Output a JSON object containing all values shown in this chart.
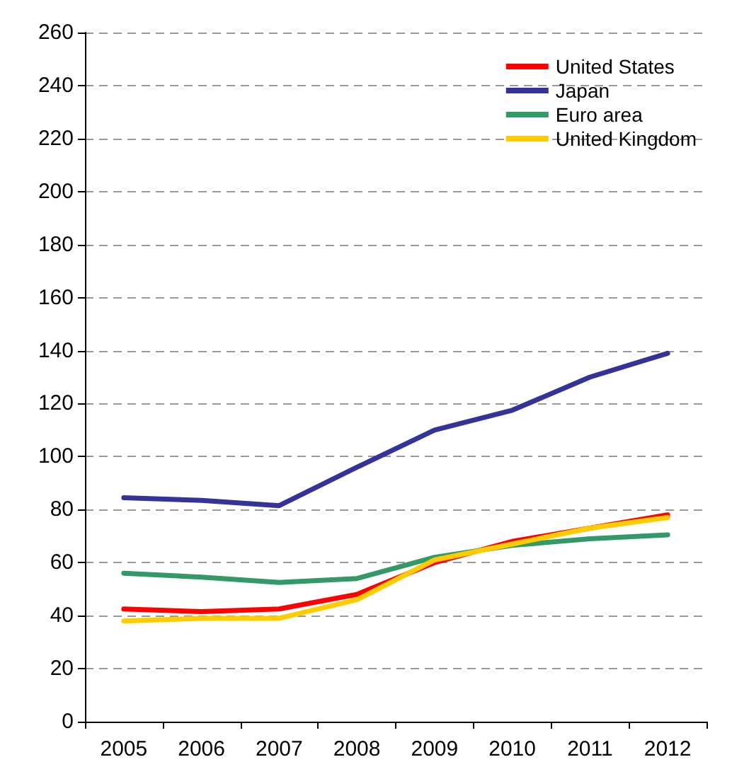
{
  "chart_data": {
    "type": "line",
    "categories": [
      "2005",
      "2006",
      "2007",
      "2008",
      "2009",
      "2010",
      "2011",
      "2012"
    ],
    "series": [
      {
        "name": "United States",
        "color": "#ff0000",
        "values": [
          42.5,
          41.5,
          42.5,
          48,
          60,
          68,
          73,
          78
        ]
      },
      {
        "name": "Japan",
        "color": "#333399",
        "values": [
          84.5,
          83.5,
          81.5,
          96,
          110,
          117.5,
          130,
          139
        ]
      },
      {
        "name": "Euro area",
        "color": "#339966",
        "values": [
          56,
          54.5,
          52.5,
          54,
          62,
          66.5,
          69,
          70.5
        ]
      },
      {
        "name": "United Kingdom",
        "color": "#ffcc00",
        "values": [
          38,
          39,
          39,
          46,
          61,
          67,
          73,
          77
        ]
      }
    ],
    "ylim": [
      0,
      260
    ],
    "yticks": [
      0,
      20,
      40,
      60,
      80,
      100,
      120,
      140,
      160,
      180,
      200,
      220,
      240,
      260
    ],
    "grid": "y",
    "legend": "top right",
    "marker": "none",
    "line_style": "solid"
  }
}
